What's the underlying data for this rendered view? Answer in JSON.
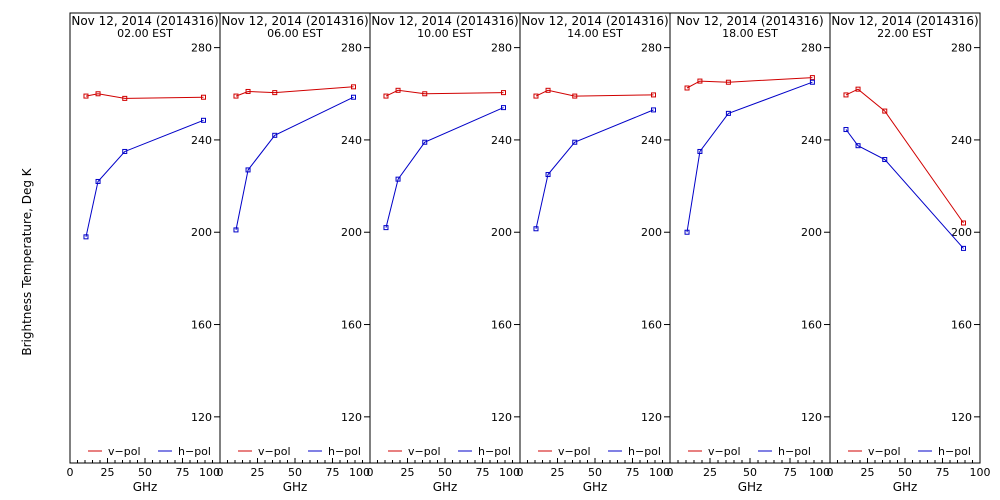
{
  "figure": {
    "ylabel": "Brightness Temperature, Deg K",
    "xlabel": "GHz",
    "legend": {
      "v": "v−pol",
      "h": "h−pol"
    },
    "colors": {
      "v": "#d00000",
      "h": "#0000c8",
      "frame": "#000000"
    }
  },
  "chart_data": [
    {
      "type": "line",
      "title": "Nov 12, 2014 (2014316)",
      "subtitle": "02.00 EST",
      "x": [
        10.65,
        18.7,
        36.5,
        89
      ],
      "series": [
        {
          "name": "v−pol",
          "values": [
            259,
            260,
            258,
            258.5
          ]
        },
        {
          "name": "h−pol",
          "values": [
            198,
            222,
            235,
            248.5
          ]
        }
      ],
      "xlim": [
        0,
        100
      ],
      "ylim": [
        100,
        295
      ],
      "xticks": [
        "0",
        "25",
        "50",
        "75",
        "100"
      ],
      "yticks": [
        "120",
        "160",
        "200",
        "240",
        "280"
      ],
      "xlabel": "GHz",
      "legend": "bottom"
    },
    {
      "type": "line",
      "title": "Nov 12, 2014 (2014316)",
      "subtitle": "06.00 EST",
      "x": [
        10.65,
        18.7,
        36.5,
        89
      ],
      "series": [
        {
          "name": "v−pol",
          "values": [
            259,
            261,
            260.5,
            263
          ]
        },
        {
          "name": "h−pol",
          "values": [
            201,
            227,
            242,
            258.5
          ]
        }
      ],
      "xlim": [
        0,
        100
      ],
      "ylim": [
        100,
        295
      ],
      "xticks": [
        "0",
        "25",
        "50",
        "75",
        "100"
      ],
      "yticks": [
        "120",
        "160",
        "200",
        "240",
        "280"
      ],
      "xlabel": "GHz",
      "legend": "bottom"
    },
    {
      "type": "line",
      "title": "Nov 12, 2014 (2014316)",
      "subtitle": "10.00 EST",
      "x": [
        10.65,
        18.7,
        36.5,
        89
      ],
      "series": [
        {
          "name": "v−pol",
          "values": [
            259,
            261.5,
            260,
            260.5
          ]
        },
        {
          "name": "h−pol",
          "values": [
            202,
            223,
            239,
            254
          ]
        }
      ],
      "xlim": [
        0,
        100
      ],
      "ylim": [
        100,
        295
      ],
      "xticks": [
        "0",
        "25",
        "50",
        "75",
        "100"
      ],
      "yticks": [
        "120",
        "160",
        "200",
        "240",
        "280"
      ],
      "xlabel": "GHz",
      "legend": "bottom"
    },
    {
      "type": "line",
      "title": "Nov 12, 2014 (2014316)",
      "subtitle": "14.00 EST",
      "x": [
        10.65,
        18.7,
        36.5,
        89
      ],
      "series": [
        {
          "name": "v−pol",
          "values": [
            259,
            261.5,
            259,
            259.5
          ]
        },
        {
          "name": "h−pol",
          "values": [
            201.5,
            225,
            239,
            253
          ]
        }
      ],
      "xlim": [
        0,
        100
      ],
      "ylim": [
        100,
        295
      ],
      "xticks": [
        "0",
        "25",
        "50",
        "75",
        "100"
      ],
      "yticks": [
        "120",
        "160",
        "200",
        "240",
        "280"
      ],
      "xlabel": "GHz",
      "legend": "bottom"
    },
    {
      "type": "line",
      "title": "Nov 12, 2014 (2014316)",
      "subtitle": "18.00 EST",
      "x": [
        10.65,
        18.7,
        36.5,
        89
      ],
      "series": [
        {
          "name": "v−pol",
          "values": [
            262.5,
            265.5,
            265,
            267
          ]
        },
        {
          "name": "h−pol",
          "values": [
            200,
            235,
            251.5,
            265
          ]
        }
      ],
      "xlim": [
        0,
        100
      ],
      "ylim": [
        100,
        295
      ],
      "xticks": [
        "0",
        "25",
        "50",
        "75",
        "100"
      ],
      "yticks": [
        "120",
        "160",
        "200",
        "240",
        "280"
      ],
      "xlabel": "GHz",
      "legend": "bottom"
    },
    {
      "type": "line",
      "title": "Nov 12, 2014 (2014316)",
      "subtitle": "22.00 EST",
      "x": [
        10.65,
        18.7,
        36.5,
        89
      ],
      "series": [
        {
          "name": "v−pol",
          "values": [
            259.5,
            262,
            252.5,
            204
          ]
        },
        {
          "name": "h−pol",
          "values": [
            244.5,
            237.5,
            231.5,
            193
          ]
        }
      ],
      "xlim": [
        0,
        100
      ],
      "ylim": [
        100,
        295
      ],
      "xticks": [
        "0",
        "25",
        "50",
        "75",
        "100"
      ],
      "yticks": [
        "120",
        "160",
        "200",
        "240",
        "280"
      ],
      "xlabel": "GHz",
      "legend": "bottom"
    }
  ]
}
